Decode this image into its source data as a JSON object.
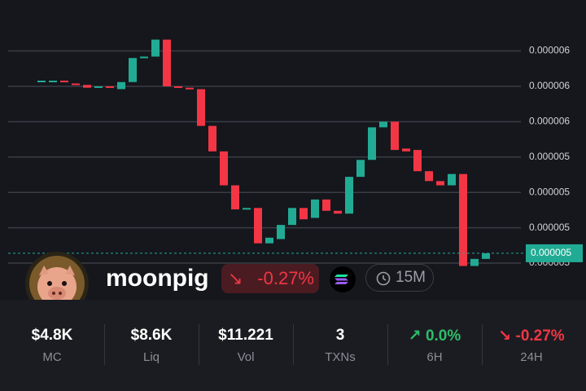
{
  "chart_data": {
    "type": "candlestick",
    "open": [
      5.89e-06,
      5.89e-06,
      5.89e-06,
      5.87e-06,
      5.86e-06,
      5.84e-06,
      5.85e-06,
      5.83e-06,
      5.88e-06,
      6.05e-06,
      6.06e-06,
      6.18e-06,
      5.85e-06,
      5.84e-06,
      5.83e-06,
      5.57e-06,
      5.39e-06,
      5.15e-06,
      4.98e-06,
      4.99e-06,
      4.74e-06,
      4.77e-06,
      4.87e-06,
      4.99e-06,
      4.92e-06,
      5.05e-06,
      4.97e-06,
      4.95e-06,
      5.21e-06,
      5.33e-06,
      5.56e-06,
      5.6e-06,
      5.41e-06,
      5.4e-06,
      5.25e-06,
      5.18e-06,
      5.15e-06,
      5.23e-06,
      4.58e-06,
      4.63e-06
    ],
    "close": [
      5.89e-06,
      5.89e-06,
      5.88e-06,
      5.86e-06,
      5.84e-06,
      5.85e-06,
      5.84e-06,
      5.88e-06,
      6.05e-06,
      6.06e-06,
      6.18e-06,
      5.85e-06,
      5.84e-06,
      5.83e-06,
      5.57e-06,
      5.39e-06,
      5.15e-06,
      4.98e-06,
      4.99e-06,
      4.74e-06,
      4.78e-06,
      4.87e-06,
      4.99e-06,
      4.91e-06,
      5.05e-06,
      4.97e-06,
      4.95e-06,
      5.21e-06,
      5.33e-06,
      5.56e-06,
      5.6e-06,
      5.4e-06,
      5.39e-06,
      5.25e-06,
      5.18e-06,
      5.15e-06,
      5.23e-06,
      4.58e-06,
      4.63e-06,
      4.67e-06
    ],
    "ylim": [
      4.56e-06,
      6.46e-06
    ],
    "yticks": [
      {
        "value": 6.1e-06,
        "label": "0.000006"
      },
      {
        "value": 5.85e-06,
        "label": "0.000006"
      },
      {
        "value": 5.6e-06,
        "label": "0.000006"
      },
      {
        "value": 5.35e-06,
        "label": "0.000005"
      },
      {
        "value": 5.1e-06,
        "label": "0.000005"
      },
      {
        "value": 4.85e-06,
        "label": "0.000005"
      },
      {
        "value": 4.6e-06,
        "label": "0.000005"
      }
    ],
    "last_price": {
      "value": 4.67e-06,
      "label": "0.000005"
    },
    "up_color": "#22ab94",
    "down_color": "#f23645",
    "grid": true
  },
  "token": {
    "name": "moonpig",
    "change": "-0.27%",
    "timeframe": "15M"
  },
  "stats": [
    {
      "value": "$4.8K",
      "label": "MC"
    },
    {
      "value": "$8.6K",
      "label": "Liq"
    },
    {
      "value": "$11.221",
      "label": "Vol"
    },
    {
      "value": "3",
      "label": "TXNs"
    },
    {
      "value": "0.0%",
      "label": "6H"
    },
    {
      "value": "-0.27%",
      "label": "24H"
    }
  ]
}
